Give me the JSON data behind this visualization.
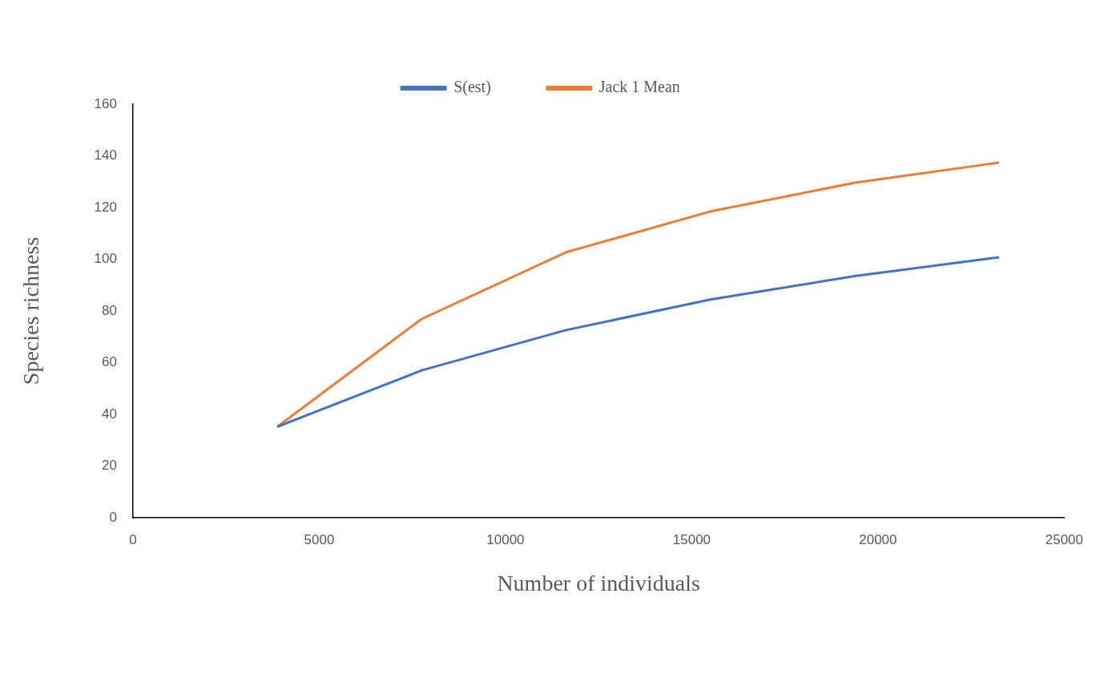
{
  "chart_data": {
    "type": "line",
    "xlabel": "Number of individuals",
    "ylabel": "Species richness",
    "x": [
      3875,
      7750,
      11625,
      15500,
      19375,
      23250
    ],
    "series": [
      {
        "name": "S(est)",
        "color": "#4472c4",
        "values": [
          35.2,
          57.0,
          72.6,
          84.4,
          93.5,
          100.8
        ]
      },
      {
        "name": "Jack 1 Mean",
        "color": "#ed7d31",
        "values": [
          35.2,
          76.9,
          102.7,
          118.5,
          129.6,
          137.4
        ]
      }
    ],
    "xlim": [
      0,
      25000
    ],
    "xticks": [
      0,
      5000,
      10000,
      15000,
      20000,
      25000
    ],
    "ylim": [
      0,
      160
    ],
    "yticks": [
      0,
      20,
      40,
      60,
      80,
      100,
      120,
      140,
      160
    ],
    "grid": false,
    "legend": "top",
    "marker": "none",
    "line_style": "solid"
  }
}
